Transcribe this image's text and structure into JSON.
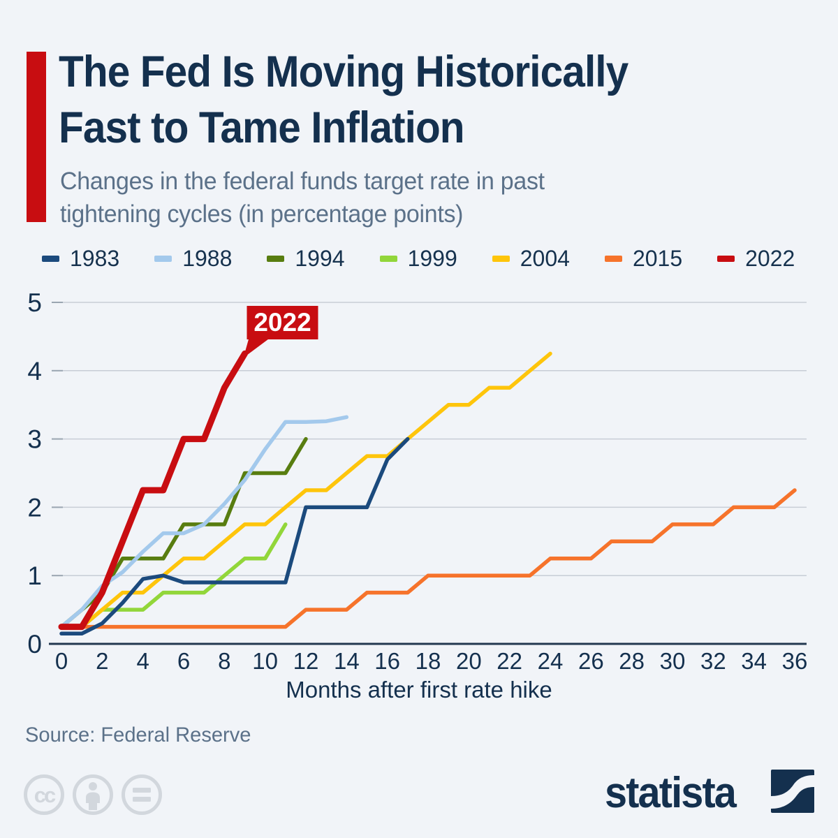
{
  "header": {
    "title_line1": "The Fed Is Moving Historically",
    "title_line2": "Fast to Tame Inflation",
    "subtitle_line1": "Changes in the federal funds target rate in past",
    "subtitle_line2": "tightening cycles (in percentage points)"
  },
  "chart_data": {
    "type": "line",
    "title": "The Fed Is Moving Historically Fast to Tame Inflation",
    "subtitle": "Changes in the federal funds target rate in past tightening cycles (in percentage points)",
    "xlabel": "Months after first rate hike",
    "ylabel": "",
    "xlim": [
      0,
      36
    ],
    "ylim": [
      0,
      5
    ],
    "x_ticks": [
      0,
      2,
      4,
      6,
      8,
      10,
      12,
      14,
      16,
      18,
      20,
      22,
      24,
      26,
      28,
      30,
      32,
      34,
      36
    ],
    "y_ticks": [
      0,
      1,
      2,
      3,
      4,
      5
    ],
    "grid": "horizontal",
    "legend_position": "top",
    "annotation": {
      "label": "2022",
      "x": 9,
      "y": 4.25,
      "box_color": "#c80d11",
      "text_color": "#ffffff"
    },
    "series": [
      {
        "name": "1983",
        "color": "#1b4a7d",
        "width": 5.5,
        "points": [
          [
            0,
            0.15
          ],
          [
            1,
            0.15
          ],
          [
            2,
            0.3
          ],
          [
            3,
            0.6
          ],
          [
            4,
            0.95
          ],
          [
            5,
            1.0
          ],
          [
            6,
            0.9
          ],
          [
            7,
            0.9
          ],
          [
            8,
            0.9
          ],
          [
            9,
            0.9
          ],
          [
            10,
            0.9
          ],
          [
            11,
            0.9
          ],
          [
            12,
            2.0
          ],
          [
            13,
            2.0
          ],
          [
            14,
            2.0
          ],
          [
            15,
            2.0
          ],
          [
            16,
            2.7
          ],
          [
            17,
            3.0
          ]
        ]
      },
      {
        "name": "1988",
        "color": "#a3c9ec",
        "width": 5.5,
        "points": [
          [
            0,
            0.25
          ],
          [
            1,
            0.5
          ],
          [
            2,
            0.85
          ],
          [
            3,
            1.05
          ],
          [
            4,
            1.35
          ],
          [
            5,
            1.62
          ],
          [
            6,
            1.62
          ],
          [
            7,
            1.75
          ],
          [
            8,
            2.05
          ],
          [
            9,
            2.4
          ],
          [
            10,
            2.85
          ],
          [
            11,
            3.25
          ],
          [
            12,
            3.25
          ],
          [
            13,
            3.26
          ],
          [
            14,
            3.32
          ]
        ]
      },
      {
        "name": "1994",
        "color": "#587d10",
        "width": 5.5,
        "points": [
          [
            0,
            0.25
          ],
          [
            1,
            0.5
          ],
          [
            2,
            0.75
          ],
          [
            3,
            1.25
          ],
          [
            4,
            1.25
          ],
          [
            5,
            1.25
          ],
          [
            6,
            1.75
          ],
          [
            7,
            1.75
          ],
          [
            8,
            1.75
          ],
          [
            9,
            2.5
          ],
          [
            10,
            2.5
          ],
          [
            11,
            2.5
          ],
          [
            12,
            3.0
          ]
        ]
      },
      {
        "name": "1999",
        "color": "#92d63a",
        "width": 5.5,
        "points": [
          [
            0,
            0.25
          ],
          [
            1,
            0.25
          ],
          [
            2,
            0.5
          ],
          [
            3,
            0.5
          ],
          [
            4,
            0.5
          ],
          [
            5,
            0.75
          ],
          [
            6,
            0.75
          ],
          [
            7,
            0.75
          ],
          [
            8,
            1.0
          ],
          [
            9,
            1.25
          ],
          [
            10,
            1.25
          ],
          [
            11,
            1.75
          ]
        ]
      },
      {
        "name": "2004",
        "color": "#fec50b",
        "width": 5.5,
        "points": [
          [
            0,
            0.25
          ],
          [
            1,
            0.25
          ],
          [
            2,
            0.5
          ],
          [
            3,
            0.75
          ],
          [
            4,
            0.75
          ],
          [
            5,
            1.0
          ],
          [
            6,
            1.25
          ],
          [
            7,
            1.25
          ],
          [
            8,
            1.5
          ],
          [
            9,
            1.75
          ],
          [
            10,
            1.75
          ],
          [
            11,
            2.0
          ],
          [
            12,
            2.25
          ],
          [
            13,
            2.25
          ],
          [
            14,
            2.5
          ],
          [
            15,
            2.75
          ],
          [
            16,
            2.75
          ],
          [
            17,
            3.0
          ],
          [
            18,
            3.25
          ],
          [
            19,
            3.5
          ],
          [
            20,
            3.5
          ],
          [
            21,
            3.75
          ],
          [
            22,
            3.75
          ],
          [
            23,
            4.0
          ],
          [
            24,
            4.25
          ]
        ]
      },
      {
        "name": "2015",
        "color": "#f6732b",
        "width": 5.5,
        "points": [
          [
            0,
            0.25
          ],
          [
            11,
            0.25
          ],
          [
            12,
            0.5
          ],
          [
            14,
            0.5
          ],
          [
            15,
            0.75
          ],
          [
            17,
            0.75
          ],
          [
            18,
            1.0
          ],
          [
            23,
            1.0
          ],
          [
            24,
            1.25
          ],
          [
            26,
            1.25
          ],
          [
            27,
            1.5
          ],
          [
            29,
            1.5
          ],
          [
            30,
            1.75
          ],
          [
            32,
            1.75
          ],
          [
            33,
            2.0
          ],
          [
            35,
            2.0
          ],
          [
            36,
            2.25
          ]
        ]
      },
      {
        "name": "2022",
        "color": "#c80d11",
        "width": 9,
        "points": [
          [
            0,
            0.25
          ],
          [
            1,
            0.25
          ],
          [
            2,
            0.75
          ],
          [
            3,
            1.5
          ],
          [
            4,
            2.25
          ],
          [
            5,
            2.25
          ],
          [
            6,
            3.0
          ],
          [
            7,
            3.0
          ],
          [
            8,
            3.75
          ],
          [
            9,
            4.25
          ]
        ]
      }
    ]
  },
  "footer": {
    "source": "Source: Federal Reserve",
    "license_icons": [
      "cc-icon",
      "attribution-icon",
      "equals-icon"
    ],
    "logo_text": "statista"
  },
  "colors": {
    "background": "#f1f4f8",
    "title": "#14304e",
    "subtitle": "#5b7189",
    "gridline": "#c7cdd6",
    "axis": "#22384f",
    "accent_red": "#c80d11",
    "icon_gray": "#d2d7dd"
  }
}
